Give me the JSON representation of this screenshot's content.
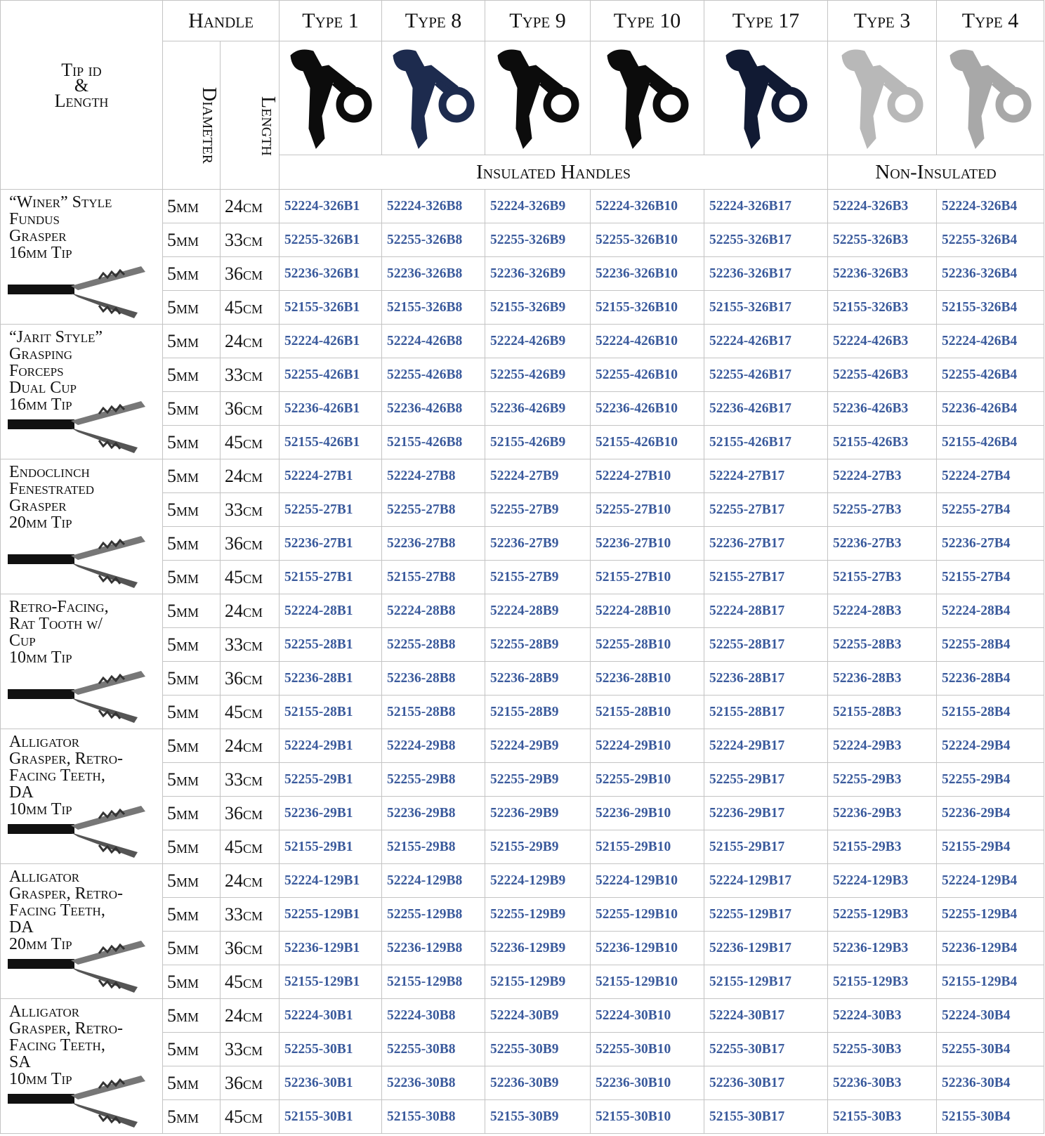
{
  "header": {
    "tip_label": [
      "Tip id",
      "&",
      "Length"
    ],
    "handle": "Handle",
    "diameter": "Diameter",
    "length": "Length",
    "types": [
      "Type 1",
      "Type 8",
      "Type 9",
      "Type 10",
      "Type 17",
      "Type 3",
      "Type 4"
    ],
    "insulated": "Insulated Handles",
    "non_insulated": "Non-Insulated"
  },
  "groups": [
    {
      "name": [
        "“Winer” Style",
        "Fundus",
        "Grasper",
        "16mm Tip"
      ],
      "rows": [
        {
          "diameter": "5mm",
          "length": "24cm",
          "parts": [
            "52224-326B1",
            "52224-326B8",
            "52224-326B9",
            "52224-326B10",
            "52224-326B17",
            "52224-326B3",
            "52224-326B4"
          ]
        },
        {
          "diameter": "5mm",
          "length": "33cm",
          "parts": [
            "52255-326B1",
            "52255-326B8",
            "52255-326B9",
            "52255-326B10",
            "52255-326B17",
            "52255-326B3",
            "52255-326B4"
          ]
        },
        {
          "diameter": "5mm",
          "length": "36cm",
          "parts": [
            "52236-326B1",
            "52236-326B8",
            "52236-326B9",
            "52236-326B10",
            "52236-326B17",
            "52236-326B3",
            "52236-326B4"
          ]
        },
        {
          "diameter": "5mm",
          "length": "45cm",
          "parts": [
            "52155-326B1",
            "52155-326B8",
            "52155-326B9",
            "52155-326B10",
            "52155-326B17",
            "52155-326B3",
            "52155-326B4"
          ]
        }
      ]
    },
    {
      "name": [
        "“Jarit Style”",
        "Grasping",
        "Forceps",
        "Dual Cup",
        "16mm Tip"
      ],
      "rows": [
        {
          "diameter": "5mm",
          "length": "24cm",
          "parts": [
            "52224-426B1",
            "52224-426B8",
            "52224-426B9",
            "52224-426B10",
            "52224-426B17",
            "52224-426B3",
            "52224-426B4"
          ]
        },
        {
          "diameter": "5mm",
          "length": "33cm",
          "parts": [
            "52255-426B1",
            "52255-426B8",
            "52255-426B9",
            "52255-426B10",
            "52255-426B17",
            "52255-426B3",
            "52255-426B4"
          ]
        },
        {
          "diameter": "5mm",
          "length": "36cm",
          "parts": [
            "52236-426B1",
            "52236-426B8",
            "52236-426B9",
            "52236-426B10",
            "52236-426B17",
            "52236-426B3",
            "52236-426B4"
          ]
        },
        {
          "diameter": "5mm",
          "length": "45cm",
          "parts": [
            "52155-426B1",
            "52155-426B8",
            "52155-426B9",
            "52155-426B10",
            "52155-426B17",
            "52155-426B3",
            "52155-426B4"
          ]
        }
      ]
    },
    {
      "name": [
        "Endoclinch",
        "Fenestrated",
        "Grasper",
        "20mm Tip"
      ],
      "rows": [
        {
          "diameter": "5mm",
          "length": "24cm",
          "parts": [
            "52224-27B1",
            "52224-27B8",
            "52224-27B9",
            "52224-27B10",
            "52224-27B17",
            "52224-27B3",
            "52224-27B4"
          ]
        },
        {
          "diameter": "5mm",
          "length": "33cm",
          "parts": [
            "52255-27B1",
            "52255-27B8",
            "52255-27B9",
            "52255-27B10",
            "52255-27B17",
            "52255-27B3",
            "52255-27B4"
          ]
        },
        {
          "diameter": "5mm",
          "length": "36cm",
          "parts": [
            "52236-27B1",
            "52236-27B8",
            "52236-27B9",
            "52236-27B10",
            "52236-27B17",
            "52236-27B3",
            "52236-27B4"
          ]
        },
        {
          "diameter": "5mm",
          "length": "45cm",
          "parts": [
            "52155-27B1",
            "52155-27B8",
            "52155-27B9",
            "52155-27B10",
            "52155-27B17",
            "52155-27B3",
            "52155-27B4"
          ]
        }
      ]
    },
    {
      "name": [
        "Retro-Facing,",
        "Rat Tooth w/",
        "Cup",
        "10mm Tip"
      ],
      "rows": [
        {
          "diameter": "5mm",
          "length": "24cm",
          "parts": [
            "52224-28B1",
            "52224-28B8",
            "52224-28B9",
            "52224-28B10",
            "52224-28B17",
            "52224-28B3",
            "52224-28B4"
          ]
        },
        {
          "diameter": "5mm",
          "length": "33cm",
          "parts": [
            "52255-28B1",
            "52255-28B8",
            "52255-28B9",
            "52255-28B10",
            "52255-28B17",
            "52255-28B3",
            "52255-28B4"
          ]
        },
        {
          "diameter": "5mm",
          "length": "36cm",
          "parts": [
            "52236-28B1",
            "52236-28B8",
            "52236-28B9",
            "52236-28B10",
            "52236-28B17",
            "52236-28B3",
            "52236-28B4"
          ]
        },
        {
          "diameter": "5mm",
          "length": "45cm",
          "parts": [
            "52155-28B1",
            "52155-28B8",
            "52155-28B9",
            "52155-28B10",
            "52155-28B17",
            "52155-28B3",
            "52155-28B4"
          ]
        }
      ]
    },
    {
      "name": [
        "Alligator",
        "Grasper, Retro-",
        "Facing Teeth,",
        "DA",
        "10mm Tip"
      ],
      "rows": [
        {
          "diameter": "5mm",
          "length": "24cm",
          "parts": [
            "52224-29B1",
            "52224-29B8",
            "52224-29B9",
            "52224-29B10",
            "52224-29B17",
            "52224-29B3",
            "52224-29B4"
          ]
        },
        {
          "diameter": "5mm",
          "length": "33cm",
          "parts": [
            "52255-29B1",
            "52255-29B8",
            "52255-29B9",
            "52255-29B10",
            "52255-29B17",
            "52255-29B3",
            "52255-29B4"
          ]
        },
        {
          "diameter": "5mm",
          "length": "36cm",
          "parts": [
            "52236-29B1",
            "52236-29B8",
            "52236-29B9",
            "52236-29B10",
            "52236-29B17",
            "52236-29B3",
            "52236-29B4"
          ]
        },
        {
          "diameter": "5mm",
          "length": "45cm",
          "parts": [
            "52155-29B1",
            "52155-29B8",
            "52155-29B9",
            "52155-29B10",
            "52155-29B17",
            "52155-29B3",
            "52155-29B4"
          ]
        }
      ]
    },
    {
      "name": [
        "Alligator",
        "Grasper, Retro-",
        "Facing Teeth,",
        "DA",
        "20mm Tip"
      ],
      "rows": [
        {
          "diameter": "5mm",
          "length": "24cm",
          "parts": [
            "52224-129B1",
            "52224-129B8",
            "52224-129B9",
            "52224-129B10",
            "52224-129B17",
            "52224-129B3",
            "52224-129B4"
          ]
        },
        {
          "diameter": "5mm",
          "length": "33cm",
          "parts": [
            "52255-129B1",
            "52255-129B8",
            "52255-129B9",
            "52255-129B10",
            "52255-129B17",
            "52255-129B3",
            "52255-129B4"
          ]
        },
        {
          "diameter": "5mm",
          "length": "36cm",
          "parts": [
            "52236-129B1",
            "52236-129B8",
            "52236-129B9",
            "52236-129B10",
            "52236-129B17",
            "52236-129B3",
            "52236-129B4"
          ]
        },
        {
          "diameter": "5mm",
          "length": "45cm",
          "parts": [
            "52155-129B1",
            "52155-129B8",
            "52155-129B9",
            "52155-129B10",
            "52155-129B17",
            "52155-129B3",
            "52155-129B4"
          ]
        }
      ]
    },
    {
      "name": [
        "Alligator",
        "Grasper, Retro-",
        "Facing Teeth,",
        "SA",
        "10mm Tip"
      ],
      "rows": [
        {
          "diameter": "5mm",
          "length": "24cm",
          "parts": [
            "52224-30B1",
            "52224-30B8",
            "52224-30B9",
            "52224-30B10",
            "52224-30B17",
            "52224-30B3",
            "52224-30B4"
          ]
        },
        {
          "diameter": "5mm",
          "length": "33cm",
          "parts": [
            "52255-30B1",
            "52255-30B8",
            "52255-30B9",
            "52255-30B10",
            "52255-30B17",
            "52255-30B3",
            "52255-30B4"
          ]
        },
        {
          "diameter": "5mm",
          "length": "36cm",
          "parts": [
            "52236-30B1",
            "52236-30B8",
            "52236-30B9",
            "52236-30B10",
            "52236-30B17",
            "52236-30B3",
            "52236-30B4"
          ]
        },
        {
          "diameter": "5mm",
          "length": "45cm",
          "parts": [
            "52155-30B1",
            "52155-30B8",
            "52155-30B9",
            "52155-30B10",
            "52155-30B17",
            "52155-30B3",
            "52155-30B4"
          ]
        }
      ]
    }
  ]
}
